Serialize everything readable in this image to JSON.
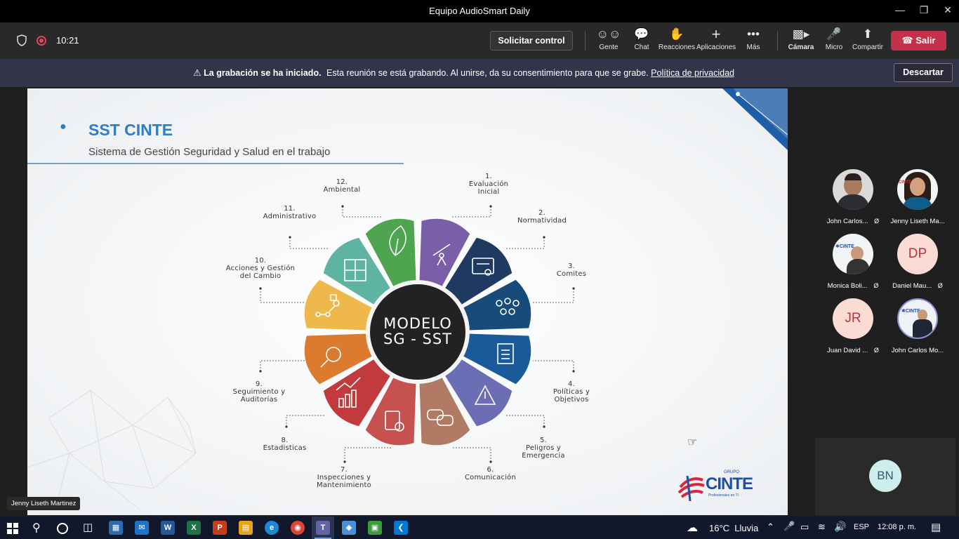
{
  "window": {
    "title": "Equipo AudioSmart Daily",
    "minimize_icon": "minimize-icon",
    "maximize_icon": "restore-icon",
    "close_icon": "close-icon"
  },
  "toolbar": {
    "timer": "10:21",
    "request_control": "Solicitar control",
    "buttons": [
      {
        "label": "Gente",
        "icon": "people-icon"
      },
      {
        "label": "Chat",
        "icon": "chat-icon"
      },
      {
        "label": "Reacciones",
        "icon": "reactions-icon"
      },
      {
        "label": "Aplicaciones",
        "icon": "plus-icon"
      },
      {
        "label": "Más",
        "icon": "more-icon"
      },
      {
        "label": "Cámara",
        "icon": "camera-off-icon"
      },
      {
        "label": "Micro",
        "icon": "mic-off-icon"
      },
      {
        "label": "Compartir",
        "icon": "share-icon"
      }
    ],
    "leave": "Salir"
  },
  "banner": {
    "bold": "La grabación se ha iniciado.",
    "text": "Esta reunión se está grabando. Al unirse, da su consentimiento para que se grabe.",
    "link": "Política de privacidad",
    "dismiss": "Descartar"
  },
  "slide": {
    "title": "SST CINTE",
    "subtitle": "Sistema de Gestión Seguridad y Salud en el trabajo",
    "center_line1": "MODELO",
    "center_line2": "SG - SST",
    "labels": [
      "1.\nEvaluación\nInicial",
      "2.\nNormatividad",
      "3.\nComites",
      "4.\nPolíticas y\nObjetivos",
      "5.\nPeligros y\nEmergencia",
      "6.\nComunicación",
      "7.\nInspecciones y\nMantenimiento",
      "8.\nEstadisticas",
      "9.\nSeguimiento y\nAuditorías",
      "10.\nAcciones y Gestión\ndel Cambio",
      "11.\nAdministrativo",
      "12.\nAmbiental"
    ],
    "logo_small": "GRUPO",
    "logo_text": "CINTE",
    "logo_tag": "Profesionales en TI",
    "presenter": "Jenny Liseth Martinez"
  },
  "participants": [
    {
      "name": "John Carlos...",
      "initials": "",
      "muted": true
    },
    {
      "name": "Jenny Liseth Ma...",
      "initials": "",
      "muted": false
    },
    {
      "name": "Monica Boli...",
      "initials": "",
      "muted": true
    },
    {
      "name": "Daniel Mau...",
      "initials": "DP",
      "muted": true
    },
    {
      "name": "Juan David ...",
      "initials": "JR",
      "muted": true
    },
    {
      "name": "John Carlos Mo...",
      "initials": "",
      "muted": false
    }
  ],
  "self_tile": {
    "initials": "BN"
  },
  "taskbar": {
    "weather": "16°C  Lluvia",
    "language": "ESP",
    "time": "12:08 p. m."
  },
  "colors": {
    "leave": "#c4314b",
    "banner": "#33344a",
    "slide_title": "#2f7dc6"
  }
}
